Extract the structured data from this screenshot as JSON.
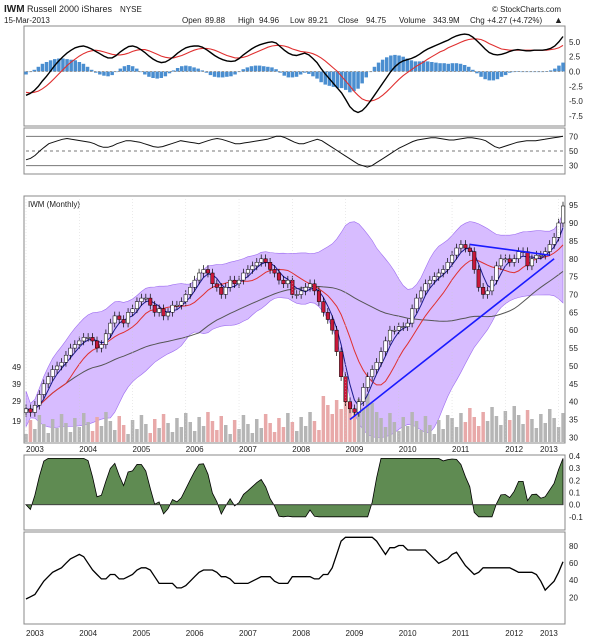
{
  "header": {
    "ticker": "IWM",
    "name": "Russell 2000 iShares",
    "exchange": "NYSE",
    "date": "15-Mar-2013",
    "open_label": "Open",
    "open": "89.88",
    "high_label": "High",
    "high": "94.96",
    "low_label": "Low",
    "low": "89.21",
    "close_label": "Close",
    "close": "94.75",
    "volume_label": "Volume",
    "volume": "343.9M",
    "chg_label": "Chg",
    "chg": "+4.27 (+4.72%)",
    "watermark": "© StockCharts.com"
  },
  "colors": {
    "candle_up": "#ffffff",
    "candle_down": "#c8183a",
    "bollinger_fill": "#c9a6ff",
    "bollinger_edge": "#9d6cf0",
    "trendline": "#1a1aff",
    "macd_hist": "#4a8ed0",
    "macd_signal": "#e03030",
    "ma_red": "#e03030",
    "ma_gray": "#555555",
    "ma_navy": "#1b1b8f",
    "area_fill": "#5f8b52",
    "area_neg": "#a45a5a",
    "vol_up": "#b5b5b5",
    "vol_down": "#e8a9a9"
  },
  "panels": {
    "main_title": "IWM (Monthly)"
  },
  "chart_data": [
    {
      "type": "line",
      "panel": "macd",
      "yticks": [
        "5.0",
        "2.5",
        "0.0",
        "-2.5",
        "-5.0",
        "-7.5"
      ],
      "ylim": [
        -9,
        7.5
      ],
      "series": [
        {
          "values": [
            -4.0,
            -3.7,
            -3.2,
            -2.5,
            -1.6,
            -0.8,
            0.1,
            1.0,
            1.8,
            2.5,
            3.1,
            3.6,
            4.0,
            4.2,
            4.3,
            4.1,
            3.8,
            3.4,
            3.0,
            2.6,
            2.3,
            2.3,
            2.7,
            3.3,
            3.8,
            4.2,
            4.3,
            4.1,
            3.7,
            3.2,
            2.6,
            2.1,
            1.7,
            1.5,
            1.6,
            2.0,
            2.5,
            3.1,
            3.6,
            4.0,
            4.2,
            4.3,
            4.3,
            4.1,
            3.7,
            3.2,
            2.7,
            2.3,
            2.0,
            1.8,
            1.7,
            1.8,
            2.2,
            2.8,
            3.3,
            3.8,
            4.2,
            4.5,
            4.7,
            4.9,
            5.0,
            4.8,
            4.2,
            3.6,
            3.1,
            2.8,
            2.7,
            2.9,
            3.1,
            2.8,
            2.2,
            1.5,
            0.5,
            -0.4,
            -1.2,
            -2.0,
            -2.8,
            -3.6,
            -4.7,
            -5.9,
            -6.6,
            -6.9,
            -6.6,
            -5.9,
            -5.0,
            -4.0,
            -3.0,
            -2.0,
            -1.0,
            0.0,
            0.8,
            1.4,
            1.8,
            2.0,
            2.2,
            2.5,
            2.9,
            3.4,
            3.8,
            4.1,
            4.4,
            4.7,
            5.0,
            5.3,
            5.7,
            6.0,
            6.2,
            6.3,
            6.2,
            5.8,
            5.2,
            4.5,
            3.8,
            3.2,
            2.9,
            2.8,
            2.9,
            3.1,
            3.4,
            3.6,
            3.7,
            3.6,
            3.5,
            3.5,
            3.6,
            3.6,
            3.6,
            3.7,
            3.9,
            4.3,
            5.0,
            5.9
          ]
        },
        {
          "values": [
            -3.5,
            -3.6,
            -3.5,
            -3.3,
            -2.9,
            -2.4,
            -1.8,
            -1.1,
            -0.4,
            0.3,
            1.0,
            1.6,
            2.1,
            2.6,
            3.0,
            3.3,
            3.5,
            3.6,
            3.5,
            3.3,
            3.1,
            2.9,
            2.8,
            2.8,
            2.9,
            3.1,
            3.4,
            3.6,
            3.7,
            3.7,
            3.5,
            3.2,
            2.9,
            2.6,
            2.4,
            2.3,
            2.3,
            2.5,
            2.7,
            3.0,
            3.3,
            3.6,
            3.8,
            3.9,
            3.9,
            3.8,
            3.6,
            3.3,
            3.0,
            2.7,
            2.5,
            2.3,
            2.3,
            2.4,
            2.6,
            2.9,
            3.2,
            3.5,
            3.8,
            4.1,
            4.3,
            4.4,
            4.4,
            4.3,
            4.1,
            3.8,
            3.6,
            3.4,
            3.3,
            3.2,
            3.0,
            2.7,
            2.3,
            1.8,
            1.2,
            0.6,
            0.0,
            -0.8,
            -1.6,
            -2.4,
            -3.3,
            -4.0,
            -4.6,
            -4.9,
            -5.0,
            -4.8,
            -4.5,
            -4.0,
            -3.4,
            -2.7,
            -2.0,
            -1.3,
            -0.7,
            -0.2,
            0.3,
            0.8,
            1.2,
            1.6,
            2.1,
            2.5,
            2.9,
            3.3,
            3.6,
            4.0,
            4.3,
            4.6,
            4.9,
            5.2,
            5.4,
            5.5,
            5.5,
            5.4,
            5.1,
            4.7,
            4.4,
            4.1,
            3.8,
            3.7,
            3.6,
            3.6,
            3.6,
            3.6,
            3.6,
            3.6,
            3.6,
            3.6,
            3.6,
            3.6,
            3.7,
            3.8,
            4.0,
            4.4
          ]
        }
      ]
    },
    {
      "type": "line",
      "panel": "rsi",
      "yticks": [
        "70",
        "50",
        "30"
      ],
      "ylim": [
        20,
        80
      ],
      "values": [
        38,
        40,
        44,
        50,
        55,
        60,
        62,
        64,
        66,
        67,
        66,
        65,
        64,
        63,
        62,
        60,
        57,
        55,
        55,
        57,
        60,
        62,
        64,
        64,
        63,
        62,
        60,
        58,
        56,
        55,
        56,
        58,
        60,
        62,
        64,
        63,
        62,
        61,
        60,
        62,
        64,
        66,
        67,
        66,
        64,
        62,
        60,
        60,
        61,
        62,
        63,
        64,
        65,
        66,
        68,
        70,
        70,
        68,
        65,
        62,
        60,
        60,
        62,
        64,
        66,
        64,
        60,
        56,
        52,
        48,
        44,
        40,
        36,
        32,
        30,
        28,
        30,
        34,
        38,
        42,
        46,
        50,
        54,
        57,
        60,
        63,
        65,
        66,
        67,
        68,
        68,
        67,
        66,
        65,
        65,
        66,
        67,
        68,
        68,
        67,
        66,
        64,
        60,
        56,
        54,
        56,
        58,
        60,
        62,
        63,
        64,
        64,
        64,
        65,
        66,
        67,
        68,
        69,
        70
      ]
    },
    {
      "type": "bar",
      "panel": "price",
      "title": "IWM (Monthly)",
      "xticks": [
        "2003",
        "2004",
        "2005",
        "2006",
        "2007",
        "2008",
        "2009",
        "2010",
        "2011",
        "2012",
        "2013"
      ],
      "yticks": [
        "95",
        "90",
        "85",
        "80",
        "75",
        "70",
        "65",
        "60",
        "55",
        "50",
        "45",
        "40",
        "35",
        "30"
      ],
      "volume_ticks": [
        "49",
        "39",
        "29",
        "19"
      ],
      "close": [
        38,
        37,
        39,
        42,
        45,
        47,
        49,
        50,
        51,
        53,
        55,
        56,
        57,
        58,
        58,
        57,
        55,
        56,
        59,
        62,
        64,
        63,
        62,
        65,
        66,
        68,
        69,
        69,
        67,
        65,
        66,
        64,
        65,
        67,
        67,
        68,
        70,
        72,
        74,
        76,
        77,
        76,
        73,
        72,
        70,
        72,
        74,
        73,
        74,
        76,
        77,
        78,
        79,
        80,
        79,
        77,
        76,
        74,
        73,
        74,
        70,
        70,
        71,
        72,
        73,
        71,
        68,
        65,
        63,
        60,
        54,
        47,
        40,
        38,
        37,
        40,
        44,
        47,
        49,
        51,
        54,
        57,
        60,
        60,
        61,
        61,
        62,
        66,
        69,
        71,
        73,
        74,
        75,
        76,
        77,
        79,
        81,
        83,
        84,
        83,
        82,
        77,
        72,
        70,
        71,
        74,
        78,
        80,
        80,
        79,
        80,
        82,
        82,
        78,
        80,
        81,
        81,
        82,
        84,
        86,
        90,
        94.75
      ]
    }
  ]
}
